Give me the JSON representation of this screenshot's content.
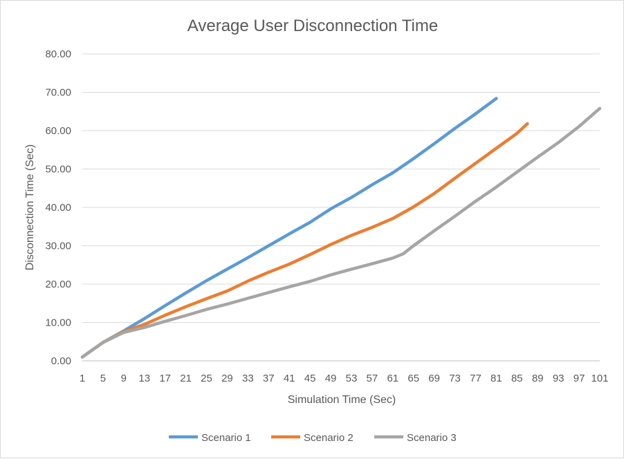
{
  "chart_data": {
    "type": "line",
    "title": "Average User Disconnection Time",
    "xlabel": "Simulation Time (Sec)",
    "ylabel": "Disconnection Time (Sec)",
    "xlim": [
      1,
      101
    ],
    "ylim": [
      0,
      80
    ],
    "y_ticks": [
      "0.00",
      "10.00",
      "20.00",
      "30.00",
      "40.00",
      "50.00",
      "60.00",
      "70.00",
      "80.00"
    ],
    "x_ticks": [
      "1",
      "5",
      "9",
      "13",
      "17",
      "21",
      "25",
      "29",
      "33",
      "37",
      "41",
      "45",
      "49",
      "53",
      "57",
      "61",
      "65",
      "69",
      "73",
      "77",
      "81",
      "85",
      "89",
      "93",
      "97",
      "101"
    ],
    "grid": "horizontal",
    "legend_position": "bottom",
    "series": [
      {
        "name": "Scenario 1",
        "color": "#5b9bd5",
        "points": [
          [
            1,
            1.0
          ],
          [
            5,
            4.8
          ],
          [
            9,
            7.8
          ],
          [
            13,
            11.0
          ],
          [
            17,
            14.4
          ],
          [
            21,
            17.7
          ],
          [
            25,
            20.9
          ],
          [
            29,
            23.9
          ],
          [
            33,
            26.9
          ],
          [
            37,
            30.0
          ],
          [
            41,
            33.1
          ],
          [
            45,
            36.1
          ],
          [
            49,
            39.6
          ],
          [
            53,
            42.6
          ],
          [
            57,
            45.9
          ],
          [
            61,
            49.0
          ],
          [
            65,
            52.7
          ],
          [
            69,
            56.6
          ],
          [
            73,
            60.6
          ],
          [
            77,
            64.4
          ],
          [
            81,
            68.4
          ]
        ]
      },
      {
        "name": "Scenario 2",
        "color": "#ed7d31",
        "points": [
          [
            1,
            1.0
          ],
          [
            5,
            4.8
          ],
          [
            9,
            7.6
          ],
          [
            13,
            9.5
          ],
          [
            17,
            11.9
          ],
          [
            21,
            14.1
          ],
          [
            25,
            16.2
          ],
          [
            29,
            18.2
          ],
          [
            33,
            20.8
          ],
          [
            37,
            23.1
          ],
          [
            41,
            25.2
          ],
          [
            45,
            27.7
          ],
          [
            49,
            30.3
          ],
          [
            53,
            32.7
          ],
          [
            57,
            34.8
          ],
          [
            61,
            37.1
          ],
          [
            65,
            40.1
          ],
          [
            69,
            43.6
          ],
          [
            73,
            47.6
          ],
          [
            77,
            51.5
          ],
          [
            81,
            55.4
          ],
          [
            85,
            59.3
          ],
          [
            87,
            61.8
          ]
        ]
      },
      {
        "name": "Scenario 3",
        "color": "#a5a5a5",
        "points": [
          [
            1,
            1.0
          ],
          [
            5,
            4.8
          ],
          [
            9,
            7.4
          ],
          [
            13,
            8.7
          ],
          [
            17,
            10.3
          ],
          [
            21,
            11.8
          ],
          [
            25,
            13.4
          ],
          [
            29,
            14.8
          ],
          [
            33,
            16.3
          ],
          [
            37,
            17.8
          ],
          [
            41,
            19.3
          ],
          [
            45,
            20.7
          ],
          [
            49,
            22.4
          ],
          [
            53,
            23.9
          ],
          [
            57,
            25.3
          ],
          [
            61,
            26.8
          ],
          [
            63,
            27.9
          ],
          [
            65,
            30.0
          ],
          [
            69,
            33.9
          ],
          [
            73,
            37.7
          ],
          [
            77,
            41.6
          ],
          [
            81,
            45.3
          ],
          [
            85,
            49.2
          ],
          [
            89,
            53.1
          ],
          [
            93,
            56.9
          ],
          [
            97,
            61.1
          ],
          [
            101,
            65.8
          ]
        ]
      }
    ]
  }
}
